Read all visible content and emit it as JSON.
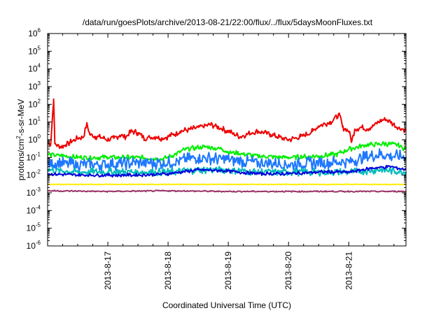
{
  "chart_data": {
    "type": "line",
    "title": "/data/run/goesPlots/archive/2013-08-21/22:00/flux/../flux/5daysMoonFluxes.txt",
    "xlabel": "Coordinated Universal Time (UTC)",
    "ylabel": {
      "base": "protons/cm",
      "sup": "2",
      "rest": "-s-sr-MeV"
    },
    "x_range_days": [
      16.0,
      21.95
    ],
    "y_scale": "log",
    "ylim": [
      1e-06,
      1000000.0
    ],
    "y_ticks": [
      {
        "exp": "-6",
        "value": 1e-06
      },
      {
        "exp": "-5",
        "value": 1e-05
      },
      {
        "exp": "-4",
        "value": 0.0001
      },
      {
        "exp": "-3",
        "value": 0.001
      },
      {
        "exp": "-2",
        "value": 0.01
      },
      {
        "exp": "-1",
        "value": 0.1
      },
      {
        "exp": "0",
        "value": 1
      },
      {
        "exp": "1",
        "value": 10
      },
      {
        "exp": "2",
        "value": 100
      },
      {
        "exp": "3",
        "value": 1000
      },
      {
        "exp": "4",
        "value": 10000.0
      },
      {
        "exp": "5",
        "value": 100000.0
      },
      {
        "exp": "6",
        "value": 1000000.0
      }
    ],
    "x_ticks": [
      {
        "label": "2013-8-17",
        "day": 17
      },
      {
        "label": "2013-8-18",
        "day": 18
      },
      {
        "label": "2013-8-19",
        "day": 19
      },
      {
        "label": "2013-8-20",
        "day": 20
      },
      {
        "label": "2013-8-21",
        "day": 21
      }
    ],
    "series": [
      {
        "color": "#ee0000",
        "amplitude": 0.35,
        "points": [
          [
            16.0,
            0.7
          ],
          [
            16.05,
            0.5
          ],
          [
            16.1,
            200
          ],
          [
            16.12,
            0.6
          ],
          [
            16.2,
            0.4
          ],
          [
            16.3,
            0.5
          ],
          [
            16.4,
            0.8
          ],
          [
            16.5,
            1.2
          ],
          [
            16.6,
            1.5
          ],
          [
            16.65,
            8
          ],
          [
            16.7,
            2
          ],
          [
            16.8,
            1.5
          ],
          [
            16.9,
            1.3
          ],
          [
            17.0,
            1.0
          ],
          [
            17.1,
            1.2
          ],
          [
            17.2,
            1.8
          ],
          [
            17.3,
            1.5
          ],
          [
            17.4,
            3
          ],
          [
            17.5,
            2.5
          ],
          [
            17.6,
            1.2
          ],
          [
            17.7,
            1.3
          ],
          [
            17.8,
            1.5
          ],
          [
            17.9,
            1.2
          ],
          [
            18.0,
            1.5
          ],
          [
            18.1,
            2
          ],
          [
            18.2,
            3
          ],
          [
            18.3,
            3.5
          ],
          [
            18.4,
            4
          ],
          [
            18.5,
            5
          ],
          [
            18.6,
            6
          ],
          [
            18.7,
            7
          ],
          [
            18.8,
            6
          ],
          [
            18.9,
            4
          ],
          [
            19.0,
            3
          ],
          [
            19.1,
            2
          ],
          [
            19.2,
            1.5
          ],
          [
            19.3,
            2
          ],
          [
            19.4,
            2.5
          ],
          [
            19.5,
            3
          ],
          [
            19.6,
            2.5
          ],
          [
            19.7,
            2
          ],
          [
            19.8,
            1.5
          ],
          [
            19.9,
            1.2
          ],
          [
            20.0,
            1.0
          ],
          [
            20.1,
            1.2
          ],
          [
            20.2,
            1.5
          ],
          [
            20.3,
            2
          ],
          [
            20.4,
            3
          ],
          [
            20.5,
            6
          ],
          [
            20.6,
            8
          ],
          [
            20.7,
            10
          ],
          [
            20.8,
            20
          ],
          [
            20.85,
            25
          ],
          [
            20.9,
            5
          ],
          [
            21.0,
            3
          ],
          [
            21.05,
            0.8
          ],
          [
            21.1,
            4
          ],
          [
            21.2,
            5
          ],
          [
            21.3,
            4
          ],
          [
            21.4,
            6
          ],
          [
            21.5,
            10
          ],
          [
            21.6,
            15
          ],
          [
            21.7,
            10
          ],
          [
            21.8,
            5
          ],
          [
            21.9,
            4
          ],
          [
            21.95,
            3.5
          ]
        ]
      },
      {
        "color": "#00ee00",
        "amplitude": 0.3,
        "points": [
          [
            16.0,
            0.15
          ],
          [
            16.5,
            0.1
          ],
          [
            17.0,
            0.1
          ],
          [
            17.5,
            0.1
          ],
          [
            17.9,
            0.08
          ],
          [
            18.0,
            0.1
          ],
          [
            18.3,
            0.3
          ],
          [
            18.6,
            0.4
          ],
          [
            18.9,
            0.3
          ],
          [
            19.0,
            0.2
          ],
          [
            19.5,
            0.12
          ],
          [
            20.0,
            0.1
          ],
          [
            20.5,
            0.12
          ],
          [
            20.8,
            0.15
          ],
          [
            21.0,
            0.3
          ],
          [
            21.3,
            0.5
          ],
          [
            21.6,
            0.6
          ],
          [
            21.8,
            0.5
          ],
          [
            21.95,
            0.3
          ]
        ]
      },
      {
        "color": "#1e78ff",
        "amplitude": 0.75,
        "points": [
          [
            16.0,
            0.05
          ],
          [
            16.5,
            0.04
          ],
          [
            17.0,
            0.04
          ],
          [
            17.5,
            0.05
          ],
          [
            18.0,
            0.05
          ],
          [
            18.5,
            0.1
          ],
          [
            18.9,
            0.08
          ],
          [
            19.5,
            0.05
          ],
          [
            20.0,
            0.04
          ],
          [
            20.5,
            0.05
          ],
          [
            21.0,
            0.06
          ],
          [
            21.5,
            0.15
          ],
          [
            21.95,
            0.1
          ]
        ]
      },
      {
        "color": "#00bbbb",
        "amplitude": 0.45,
        "points": [
          [
            16.0,
            0.02
          ],
          [
            16.5,
            0.015
          ],
          [
            17.0,
            0.015
          ],
          [
            17.5,
            0.015
          ],
          [
            18.0,
            0.015
          ],
          [
            18.5,
            0.02
          ],
          [
            19.0,
            0.02
          ],
          [
            19.5,
            0.015
          ],
          [
            20.0,
            0.015
          ],
          [
            20.5,
            0.015
          ],
          [
            21.0,
            0.015
          ],
          [
            21.5,
            0.02
          ],
          [
            21.95,
            0.015
          ]
        ]
      },
      {
        "color": "#0000dd",
        "amplitude": 0.2,
        "points": [
          [
            16.0,
            0.012
          ],
          [
            16.5,
            0.01
          ],
          [
            17.0,
            0.01
          ],
          [
            17.5,
            0.01
          ],
          [
            18.0,
            0.012
          ],
          [
            18.5,
            0.02
          ],
          [
            18.9,
            0.018
          ],
          [
            19.5,
            0.012
          ],
          [
            20.0,
            0.012
          ],
          [
            20.5,
            0.015
          ],
          [
            21.0,
            0.015
          ],
          [
            21.4,
            0.025
          ],
          [
            21.7,
            0.03
          ],
          [
            21.95,
            0.02
          ]
        ]
      },
      {
        "color": "#ffee00",
        "amplitude": 0.04,
        "points": [
          [
            16.0,
            0.003
          ],
          [
            17.0,
            0.003
          ],
          [
            18.0,
            0.003
          ],
          [
            19.0,
            0.003
          ],
          [
            20.0,
            0.003
          ],
          [
            21.0,
            0.003
          ],
          [
            21.95,
            0.003
          ]
        ]
      },
      {
        "color": "#993366",
        "amplitude": 0.08,
        "points": [
          [
            16.0,
            0.0013
          ],
          [
            17.0,
            0.0012
          ],
          [
            18.0,
            0.0013
          ],
          [
            19.0,
            0.0012
          ],
          [
            20.0,
            0.0012
          ],
          [
            21.0,
            0.0012
          ],
          [
            21.95,
            0.0012
          ]
        ]
      }
    ]
  }
}
